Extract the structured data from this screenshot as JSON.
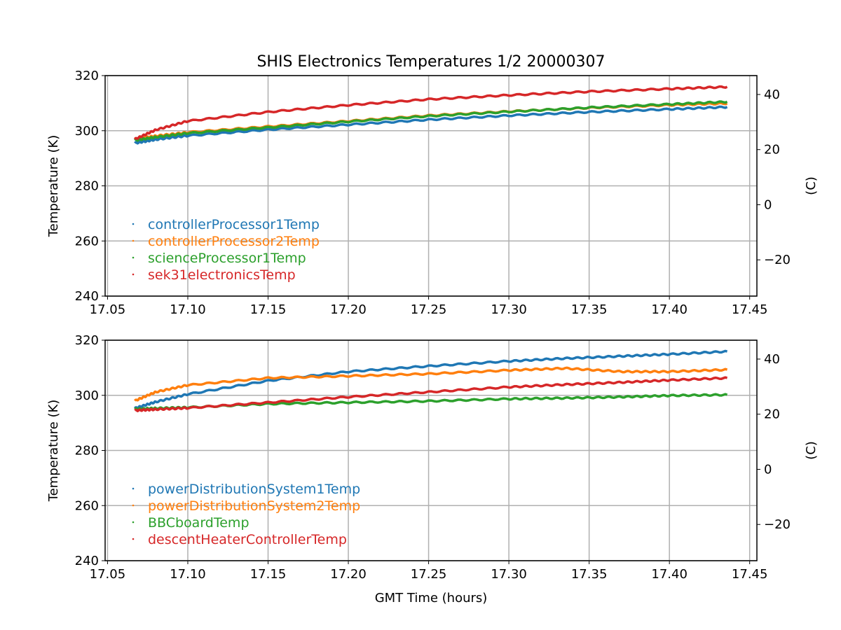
{
  "chart_data": [
    {
      "type": "scatter",
      "title": "SHIS Electronics Temperatures 1/2 20000307",
      "xlabel": "",
      "ylabel": "Temperature (K)",
      "y2label": "(C)",
      "xlim": [
        17.0485,
        17.4545
      ],
      "ylim": [
        240,
        320
      ],
      "xticks": [
        "17.05",
        "17.10",
        "17.15",
        "17.20",
        "17.25",
        "17.30",
        "17.35",
        "17.40",
        "17.45"
      ],
      "yticks": [
        "240",
        "260",
        "280",
        "300",
        "320"
      ],
      "y2ticks": [
        "−20",
        "0",
        "20",
        "40"
      ],
      "grid": true,
      "legend_position": "lower-left",
      "x": [
        17.067,
        17.08,
        17.1,
        17.15,
        17.2,
        17.25,
        17.3,
        17.35,
        17.4,
        17.436
      ],
      "series": [
        {
          "name": "controllerProcessor1Temp",
          "color": "#1f77b4",
          "values": [
            295.5,
            296.8,
            298.2,
            300.4,
            302.2,
            304.0,
            305.5,
            306.8,
            307.8,
            308.6
          ]
        },
        {
          "name": "controllerProcessor2Temp",
          "color": "#ff7f0e",
          "values": [
            297.0,
            298.1,
            299.4,
            301.5,
            303.5,
            305.5,
            307.0,
            308.3,
            309.3,
            309.9
          ]
        },
        {
          "name": "scienceProcessor1Temp",
          "color": "#2ca02c",
          "values": [
            296.5,
            297.7,
            299.1,
            301.2,
            303.3,
            305.3,
            306.9,
            308.4,
            309.6,
            310.5
          ]
        },
        {
          "name": "sek31electronicsTemp",
          "color": "#d62728",
          "values": [
            296.9,
            300.3,
            303.5,
            306.8,
            309.3,
            311.4,
            312.9,
            314.2,
            315.2,
            315.9
          ]
        }
      ]
    },
    {
      "type": "scatter",
      "title": "",
      "xlabel": "GMT Time (hours)",
      "ylabel": "Temperature (K)",
      "y2label": "(C)",
      "xlim": [
        17.0485,
        17.4545
      ],
      "ylim": [
        240,
        320
      ],
      "xticks": [
        "17.05",
        "17.10",
        "17.15",
        "17.20",
        "17.25",
        "17.30",
        "17.35",
        "17.40",
        "17.45"
      ],
      "yticks": [
        "240",
        "260",
        "280",
        "300",
        "320"
      ],
      "y2ticks": [
        "−20",
        "0",
        "20",
        "40"
      ],
      "grid": true,
      "legend_position": "lower-left",
      "x": [
        17.067,
        17.08,
        17.1,
        17.15,
        17.2,
        17.25,
        17.3,
        17.335,
        17.37,
        17.4,
        17.436
      ],
      "series": [
        {
          "name": "powerDistributionSystem1Temp",
          "color": "#1f77b4",
          "values": [
            295.3,
            297.6,
            300.4,
            305.3,
            308.6,
            310.6,
            312.4,
            313.4,
            314.2,
            314.9,
            315.9
          ]
        },
        {
          "name": "powerDistributionSystem2Temp",
          "color": "#ff7f0e",
          "values": [
            298.0,
            301.2,
            303.7,
            306.3,
            307.0,
            307.8,
            309.1,
            309.8,
            308.6,
            308.6,
            309.3
          ]
        },
        {
          "name": "BBCboardTemp",
          "color": "#2ca02c",
          "values": [
            295.0,
            295.3,
            295.6,
            296.9,
            297.4,
            297.9,
            298.7,
            299.0,
            299.4,
            299.9,
            300.2
          ]
        },
        {
          "name": "descentHeaterControllerTemp",
          "color": "#d62728",
          "values": [
            294.5,
            294.9,
            295.4,
            297.4,
            299.4,
            301.2,
            303.0,
            303.9,
            304.7,
            305.5,
            306.3
          ]
        }
      ]
    }
  ]
}
